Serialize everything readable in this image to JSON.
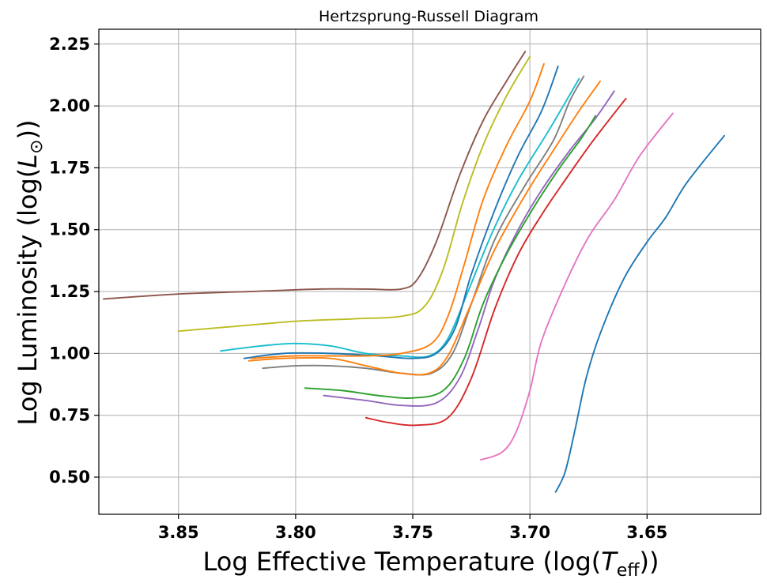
{
  "chart_data": {
    "type": "line",
    "title": "Hertzsprung-Russell Diagram",
    "xlabel_main": "Log Effective Temperature (log(",
    "xlabel_sym": "T",
    "xlabel_sub": "eff",
    "xlabel_end": "))",
    "ylabel_main": "Log Luminosity (log(",
    "ylabel_sym": "L",
    "ylabel_sub": "⊙",
    "ylabel_end": "))",
    "x_inverted": true,
    "xlim": [
      3.884,
      3.6015
    ],
    "ylim": [
      0.35,
      2.31
    ],
    "grid": true,
    "xticks": [
      3.85,
      3.8,
      3.75,
      3.7,
      3.65
    ],
    "xtick_labels": [
      "3.85",
      "3.80",
      "3.75",
      "3.70",
      "3.65"
    ],
    "yticks": [
      0.5,
      0.75,
      1.0,
      1.25,
      1.5,
      1.75,
      2.0,
      2.25
    ],
    "ytick_labels": [
      "0.50",
      "0.75",
      "1.00",
      "1.25",
      "1.50",
      "1.75",
      "2.00",
      "2.25"
    ],
    "series": [
      {
        "color": "#1f77b4",
        "points": [
          [
            3.689,
            0.44
          ],
          [
            3.685,
            0.52
          ],
          [
            3.681,
            0.68
          ],
          [
            3.676,
            0.9
          ],
          [
            3.67,
            1.08
          ],
          [
            3.66,
            1.3
          ],
          [
            3.65,
            1.45
          ],
          [
            3.642,
            1.55
          ],
          [
            3.633,
            1.69
          ],
          [
            3.617,
            1.88
          ]
        ]
      },
      {
        "color": "#e377c2",
        "points": [
          [
            3.721,
            0.57
          ],
          [
            3.712,
            0.6
          ],
          [
            3.706,
            0.68
          ],
          [
            3.7,
            0.85
          ],
          [
            3.695,
            1.05
          ],
          [
            3.685,
            1.28
          ],
          [
            3.675,
            1.47
          ],
          [
            3.664,
            1.62
          ],
          [
            3.653,
            1.8
          ],
          [
            3.639,
            1.97
          ]
        ]
      },
      {
        "color": "#d62728",
        "points": [
          [
            3.77,
            0.74
          ],
          [
            3.76,
            0.72
          ],
          [
            3.748,
            0.71
          ],
          [
            3.735,
            0.74
          ],
          [
            3.725,
            0.9
          ],
          [
            3.715,
            1.18
          ],
          [
            3.705,
            1.4
          ],
          [
            3.695,
            1.56
          ],
          [
            3.685,
            1.7
          ],
          [
            3.673,
            1.86
          ],
          [
            3.659,
            2.03
          ]
        ]
      },
      {
        "color": "#9467bd",
        "points": [
          [
            3.788,
            0.83
          ],
          [
            3.77,
            0.81
          ],
          [
            3.755,
            0.79
          ],
          [
            3.74,
            0.8
          ],
          [
            3.73,
            0.9
          ],
          [
            3.722,
            1.1
          ],
          [
            3.715,
            1.3
          ],
          [
            3.705,
            1.5
          ],
          [
            3.695,
            1.66
          ],
          [
            3.683,
            1.82
          ],
          [
            3.672,
            1.95
          ],
          [
            3.664,
            2.06
          ]
        ]
      },
      {
        "color": "#2ca02c",
        "points": [
          [
            3.796,
            0.86
          ],
          [
            3.78,
            0.85
          ],
          [
            3.765,
            0.83
          ],
          [
            3.75,
            0.82
          ],
          [
            3.737,
            0.85
          ],
          [
            3.728,
            0.98
          ],
          [
            3.72,
            1.2
          ],
          [
            3.71,
            1.4
          ],
          [
            3.699,
            1.58
          ],
          [
            3.688,
            1.74
          ],
          [
            3.678,
            1.87
          ],
          [
            3.672,
            1.96
          ]
        ]
      },
      {
        "color": "#7f7f7f",
        "points": [
          [
            3.814,
            0.94
          ],
          [
            3.8,
            0.95
          ],
          [
            3.785,
            0.95
          ],
          [
            3.77,
            0.94
          ],
          [
            3.755,
            0.92
          ],
          [
            3.742,
            0.92
          ],
          [
            3.733,
            1.0
          ],
          [
            3.725,
            1.2
          ],
          [
            3.715,
            1.46
          ],
          [
            3.702,
            1.68
          ],
          [
            3.69,
            1.86
          ],
          [
            3.683,
            2.02
          ],
          [
            3.677,
            2.12
          ]
        ]
      },
      {
        "color": "#ff7f0e",
        "points": [
          [
            3.82,
            0.97
          ],
          [
            3.805,
            0.98
          ],
          [
            3.785,
            0.98
          ],
          [
            3.77,
            0.95
          ],
          [
            3.755,
            0.92
          ],
          [
            3.743,
            0.92
          ],
          [
            3.735,
            0.99
          ],
          [
            3.726,
            1.18
          ],
          [
            3.715,
            1.42
          ],
          [
            3.702,
            1.64
          ],
          [
            3.69,
            1.82
          ],
          [
            3.679,
            1.98
          ],
          [
            3.67,
            2.1
          ]
        ]
      },
      {
        "color": "#17becf",
        "points": [
          [
            3.832,
            1.01
          ],
          [
            3.815,
            1.03
          ],
          [
            3.8,
            1.04
          ],
          [
            3.785,
            1.03
          ],
          [
            3.77,
            1.0
          ],
          [
            3.755,
            0.99
          ],
          [
            3.743,
            0.99
          ],
          [
            3.735,
            1.06
          ],
          [
            3.726,
            1.26
          ],
          [
            3.716,
            1.49
          ],
          [
            3.705,
            1.7
          ],
          [
            3.692,
            1.9
          ],
          [
            3.679,
            2.11
          ]
        ]
      },
      {
        "color": "#1f77b4",
        "points": [
          [
            3.822,
            0.98
          ],
          [
            3.805,
            1.0
          ],
          [
            3.785,
            1.0
          ],
          [
            3.765,
            0.99
          ],
          [
            3.75,
            0.98
          ],
          [
            3.74,
            1.0
          ],
          [
            3.732,
            1.1
          ],
          [
            3.725,
            1.32
          ],
          [
            3.715,
            1.58
          ],
          [
            3.705,
            1.8
          ],
          [
            3.695,
            1.98
          ],
          [
            3.688,
            2.16
          ]
        ]
      },
      {
        "color": "#ff7f0e",
        "points": [
          [
            3.819,
            0.98
          ],
          [
            3.8,
            0.99
          ],
          [
            3.785,
            0.99
          ],
          [
            3.77,
            0.99
          ],
          [
            3.755,
            1.0
          ],
          [
            3.742,
            1.04
          ],
          [
            3.735,
            1.15
          ],
          [
            3.728,
            1.36
          ],
          [
            3.72,
            1.62
          ],
          [
            3.71,
            1.84
          ],
          [
            3.7,
            2.02
          ],
          [
            3.694,
            2.17
          ]
        ]
      },
      {
        "color": "#bcbd22",
        "points": [
          [
            3.85,
            1.09
          ],
          [
            3.825,
            1.11
          ],
          [
            3.8,
            1.13
          ],
          [
            3.775,
            1.14
          ],
          [
            3.755,
            1.15
          ],
          [
            3.745,
            1.19
          ],
          [
            3.737,
            1.34
          ],
          [
            3.729,
            1.6
          ],
          [
            3.72,
            1.84
          ],
          [
            3.71,
            2.04
          ],
          [
            3.7,
            2.2
          ]
        ]
      },
      {
        "color": "#8c564b",
        "points": [
          [
            3.882,
            1.22
          ],
          [
            3.85,
            1.24
          ],
          [
            3.82,
            1.25
          ],
          [
            3.79,
            1.26
          ],
          [
            3.77,
            1.26
          ],
          [
            3.755,
            1.26
          ],
          [
            3.748,
            1.3
          ],
          [
            3.74,
            1.45
          ],
          [
            3.73,
            1.72
          ],
          [
            3.72,
            1.94
          ],
          [
            3.71,
            2.1
          ],
          [
            3.702,
            2.22
          ]
        ]
      }
    ]
  }
}
